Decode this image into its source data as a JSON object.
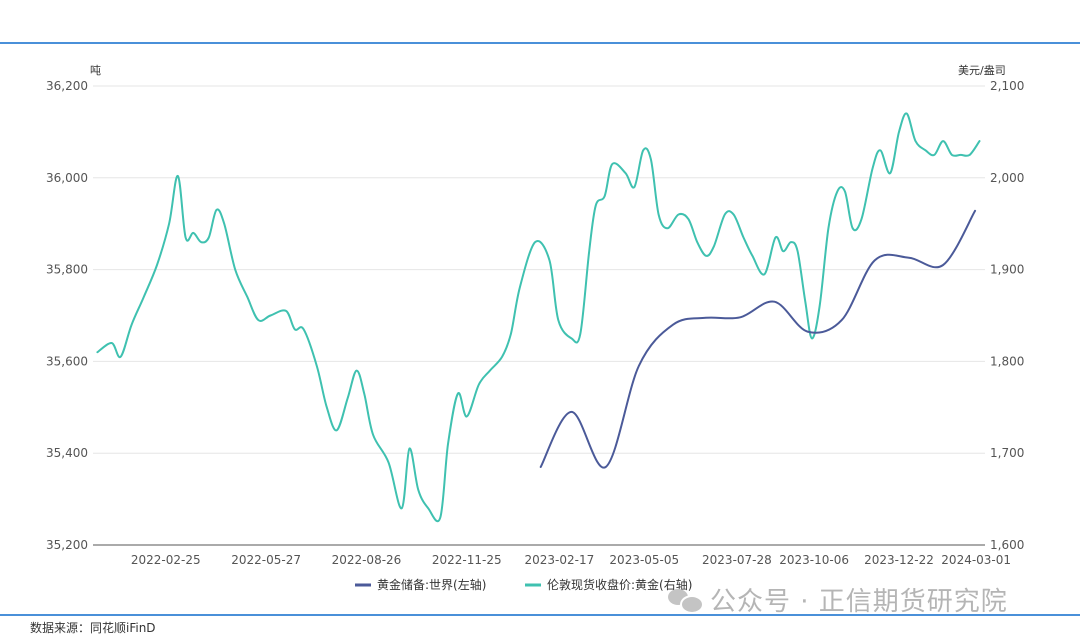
{
  "source_label": "数据来源：同花顺iFinD",
  "watermark_text": "公众号 · 正信期货研究院",
  "watermark_icon": "wechat-icon",
  "chart_data": {
    "type": "line",
    "title": "",
    "left_axis": {
      "unit": "吨",
      "range": [
        35200,
        36200
      ],
      "ticks": [
        35200,
        35400,
        35600,
        35800,
        36000,
        36200
      ],
      "tick_labels": [
        "35,200",
        "35,400",
        "35,600",
        "35,800",
        "36,000",
        "36,200"
      ]
    },
    "right_axis": {
      "unit": "美元/盎司",
      "range": [
        1600,
        2100
      ],
      "ticks": [
        1600,
        1700,
        1800,
        1900,
        2000,
        2100
      ],
      "tick_labels": [
        "1,600",
        "1,700",
        "1,800",
        "1,900",
        "2,000",
        "2,100"
      ]
    },
    "x_axis": {
      "range": [
        "2021-12-21",
        "2024-03-09"
      ],
      "tick_labels": [
        "2022-02-25",
        "2022-05-27",
        "2022-08-26",
        "2022-11-25",
        "2023-02-17",
        "2023-05-05",
        "2023-07-28",
        "2023-10-06",
        "2023-12-22",
        "2024-03-01"
      ]
    },
    "grid": true,
    "legend_position": "bottom-center",
    "series": [
      {
        "name": "黄金储备:世界(左轴)",
        "axis": "left",
        "color": "#4b5a99",
        "points": [
          [
            "2023-01-31",
            35370
          ],
          [
            "2023-02-28",
            35490
          ],
          [
            "2023-03-31",
            35370
          ],
          [
            "2023-04-30",
            35590
          ],
          [
            "2023-05-31",
            35680
          ],
          [
            "2023-06-30",
            35695
          ],
          [
            "2023-07-31",
            35696
          ],
          [
            "2023-08-31",
            35730
          ],
          [
            "2023-09-30",
            35665
          ],
          [
            "2023-10-31",
            35690
          ],
          [
            "2023-11-30",
            35820
          ],
          [
            "2023-12-31",
            35826
          ],
          [
            "2024-01-31",
            35810
          ],
          [
            "2024-02-29",
            35928
          ]
        ]
      },
      {
        "name": "伦敦现货收盘价:黄金(右轴)",
        "axis": "right",
        "color": "#3fc1b0",
        "points": [
          [
            "2021-12-25",
            1810
          ],
          [
            "2022-01-07",
            1820
          ],
          [
            "2022-01-15",
            1805
          ],
          [
            "2022-01-25",
            1840
          ],
          [
            "2022-02-05",
            1870
          ],
          [
            "2022-02-17",
            1905
          ],
          [
            "2022-02-28",
            1950
          ],
          [
            "2022-03-08",
            2002
          ],
          [
            "2022-03-15",
            1935
          ],
          [
            "2022-03-22",
            1940
          ],
          [
            "2022-03-29",
            1930
          ],
          [
            "2022-04-05",
            1935
          ],
          [
            "2022-04-12",
            1965
          ],
          [
            "2022-04-19",
            1950
          ],
          [
            "2022-04-29",
            1900
          ],
          [
            "2022-05-10",
            1870
          ],
          [
            "2022-05-20",
            1845
          ],
          [
            "2022-05-31",
            1850
          ],
          [
            "2022-06-14",
            1855
          ],
          [
            "2022-06-22",
            1835
          ],
          [
            "2022-06-30",
            1835
          ],
          [
            "2022-07-12",
            1795
          ],
          [
            "2022-07-21",
            1750
          ],
          [
            "2022-07-30",
            1725
          ],
          [
            "2022-08-09",
            1760
          ],
          [
            "2022-08-17",
            1790
          ],
          [
            "2022-08-24",
            1765
          ],
          [
            "2022-09-01",
            1720
          ],
          [
            "2022-09-15",
            1690
          ],
          [
            "2022-09-27",
            1640
          ],
          [
            "2022-10-04",
            1705
          ],
          [
            "2022-10-12",
            1660
          ],
          [
            "2022-10-21",
            1640
          ],
          [
            "2022-11-01",
            1630
          ],
          [
            "2022-11-08",
            1710
          ],
          [
            "2022-11-17",
            1765
          ],
          [
            "2022-11-25",
            1740
          ],
          [
            "2022-12-06",
            1775
          ],
          [
            "2022-12-16",
            1790
          ],
          [
            "2022-12-27",
            1805
          ],
          [
            "2023-01-04",
            1830
          ],
          [
            "2023-01-12",
            1880
          ],
          [
            "2023-01-26",
            1930
          ],
          [
            "2023-02-08",
            1910
          ],
          [
            "2023-02-16",
            1845
          ],
          [
            "2023-02-28",
            1825
          ],
          [
            "2023-03-08",
            1830
          ],
          [
            "2023-03-16",
            1920
          ],
          [
            "2023-03-22",
            1970
          ],
          [
            "2023-03-30",
            1980
          ],
          [
            "2023-04-06",
            2015
          ],
          [
            "2023-04-18",
            2005
          ],
          [
            "2023-04-26",
            1990
          ],
          [
            "2023-05-04",
            2030
          ],
          [
            "2023-05-11",
            2020
          ],
          [
            "2023-05-18",
            1960
          ],
          [
            "2023-05-26",
            1945
          ],
          [
            "2023-06-05",
            1960
          ],
          [
            "2023-06-14",
            1955
          ],
          [
            "2023-06-22",
            1930
          ],
          [
            "2023-06-30",
            1915
          ],
          [
            "2023-07-07",
            1925
          ],
          [
            "2023-07-17",
            1960
          ],
          [
            "2023-07-25",
            1960
          ],
          [
            "2023-08-03",
            1935
          ],
          [
            "2023-08-11",
            1915
          ],
          [
            "2023-08-22",
            1895
          ],
          [
            "2023-09-01",
            1935
          ],
          [
            "2023-09-08",
            1920
          ],
          [
            "2023-09-15",
            1930
          ],
          [
            "2023-09-21",
            1920
          ],
          [
            "2023-09-28",
            1865
          ],
          [
            "2023-10-04",
            1825
          ],
          [
            "2023-10-11",
            1860
          ],
          [
            "2023-10-19",
            1945
          ],
          [
            "2023-10-27",
            1985
          ],
          [
            "2023-11-03",
            1985
          ],
          [
            "2023-11-10",
            1945
          ],
          [
            "2023-11-18",
            1955
          ],
          [
            "2023-11-28",
            2010
          ],
          [
            "2023-12-05",
            2030
          ],
          [
            "2023-12-14",
            2005
          ],
          [
            "2023-12-22",
            2050
          ],
          [
            "2023-12-29",
            2070
          ],
          [
            "2024-01-06",
            2040
          ],
          [
            "2024-01-15",
            2030
          ],
          [
            "2024-01-23",
            2025
          ],
          [
            "2024-01-31",
            2040
          ],
          [
            "2024-02-08",
            2025
          ],
          [
            "2024-02-16",
            2025
          ],
          [
            "2024-02-24",
            2025
          ],
          [
            "2024-03-04",
            2040
          ]
        ]
      }
    ]
  }
}
